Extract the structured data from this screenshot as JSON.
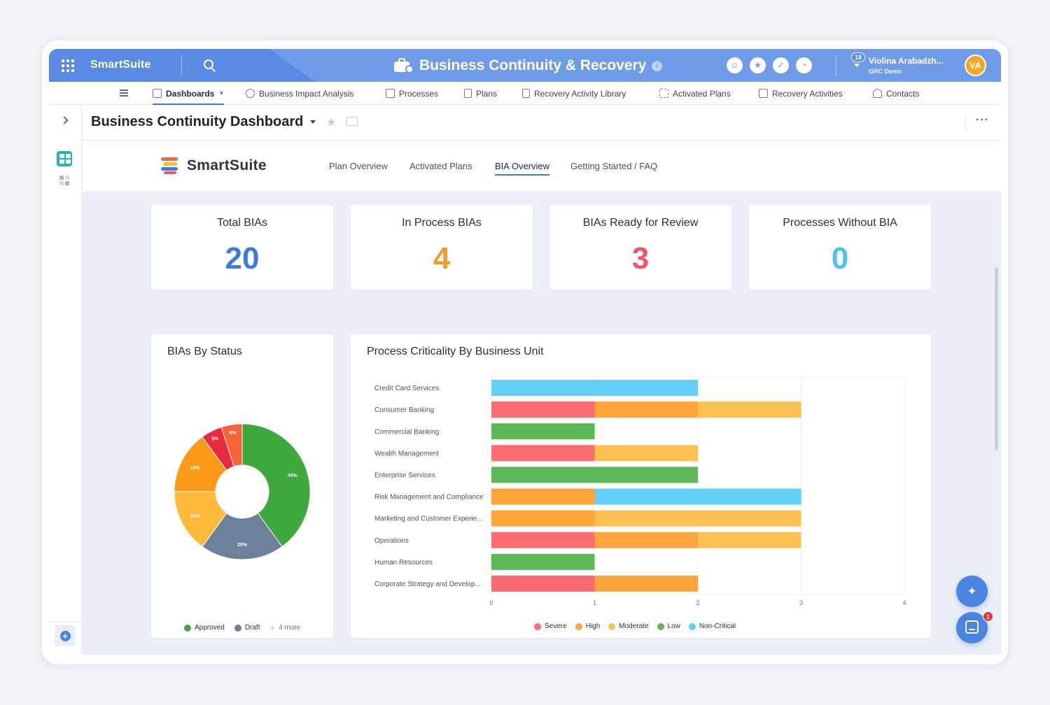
{
  "topbar": {
    "brand": "SmartSuite",
    "app_title": "Business Continuity & Recovery",
    "info_icon": "i",
    "notification_count": "18",
    "user_name": "Violina Arabadzh...",
    "user_org": "GRC Demo",
    "avatar_initials": "VA"
  },
  "nav": {
    "items": [
      {
        "label": "Dashboards",
        "icon": "dashboard-icon"
      },
      {
        "label": "Business Impact Analysis",
        "icon": "bia-icon"
      },
      {
        "label": "Processes",
        "icon": "processes-icon"
      },
      {
        "label": "Plans",
        "icon": "plans-icon"
      },
      {
        "label": "Recovery Activity Library",
        "icon": "library-icon"
      },
      {
        "label": "Activated Plans",
        "icon": "activated-icon"
      },
      {
        "label": "Recovery Activities",
        "icon": "activities-icon"
      },
      {
        "label": "Contacts",
        "icon": "contacts-icon"
      }
    ]
  },
  "header": {
    "dashboard_title": "Business Continuity Dashboard",
    "more": "···"
  },
  "inner": {
    "logo_text": "SmartSuite",
    "tabs": [
      "Plan Overview",
      "Activated Plans",
      "BIA Overview",
      "Getting Started / FAQ"
    ],
    "active_tab": "BIA Overview"
  },
  "kpis": [
    {
      "label": "Total BIAs",
      "value": "20",
      "color": "#3b7be0"
    },
    {
      "label": "In Process BIAs",
      "value": "4",
      "color": "#f59a2c"
    },
    {
      "label": "BIAs Ready for Review",
      "value": "3",
      "color": "#f0566a"
    },
    {
      "label": "Processes Without BIA",
      "value": "0",
      "color": "#4fc3f0"
    }
  ],
  "status_chart": {
    "title": "BIAs By Status",
    "legend": {
      "approved": "Approved",
      "draft": "Draft",
      "more": "4 more"
    },
    "colors": {
      "approved": "#3ea83a",
      "draft": "#6b7f99",
      "more": "#b7bfcc"
    }
  },
  "criticality_chart": {
    "title": "Process Criticality By Business Unit",
    "legend": [
      "Severe",
      "High",
      "Moderate",
      "Low",
      "Non-Critical"
    ]
  },
  "chart_data": [
    {
      "type": "pie",
      "title": "BIAs By Status",
      "donut": true,
      "slices": [
        {
          "label": "Approved",
          "value": 40,
          "color": "#3fa83d"
        },
        {
          "label": "Draft",
          "value": 20,
          "color": "#6c809a"
        },
        {
          "label": "",
          "value": 15,
          "color": "#fdb93a"
        },
        {
          "label": "",
          "value": 15,
          "color": "#fb9a16"
        },
        {
          "label": "",
          "value": 5,
          "color": "#e8283d"
        },
        {
          "label": "",
          "value": 5,
          "color": "#f7643a"
        }
      ],
      "slice_labels": [
        "40%",
        "20%",
        "15%",
        "15%",
        "5%",
        "5%"
      ]
    },
    {
      "type": "bar",
      "orientation": "horizontal",
      "stacked": true,
      "title": "Process Criticality By Business Unit",
      "categories": [
        "Credit Card Services",
        "Consumer Banking",
        "Commercial Banking",
        "Wealth Management",
        "Enterprise Services",
        "Risk Management and Compliance",
        "Marketing and Customer Experie...",
        "Operations",
        "Human Resources",
        "Corporate Strategy and Develop..."
      ],
      "series": [
        {
          "name": "Severe",
          "color": "#fc6a72",
          "values": [
            0,
            1,
            0,
            1,
            0,
            0,
            0,
            1,
            0,
            1
          ]
        },
        {
          "name": "High",
          "color": "#fda43a",
          "values": [
            0,
            1,
            0,
            0,
            0,
            1,
            1,
            1,
            0,
            1
          ]
        },
        {
          "name": "Moderate",
          "color": "#fdc052",
          "values": [
            0,
            1,
            0,
            1,
            0,
            0,
            2,
            1,
            0,
            0
          ]
        },
        {
          "name": "Low",
          "color": "#5bb957",
          "values": [
            0,
            0,
            1,
            0,
            2,
            0,
            0,
            0,
            1,
            0
          ]
        },
        {
          "name": "Non-Critical",
          "color": "#66cff8",
          "values": [
            2,
            0,
            0,
            0,
            0,
            2,
            0,
            0,
            0,
            0
          ]
        }
      ],
      "xlim": [
        0,
        4
      ],
      "xticks": [
        "0",
        "1",
        "2",
        "3",
        "4"
      ]
    }
  ]
}
